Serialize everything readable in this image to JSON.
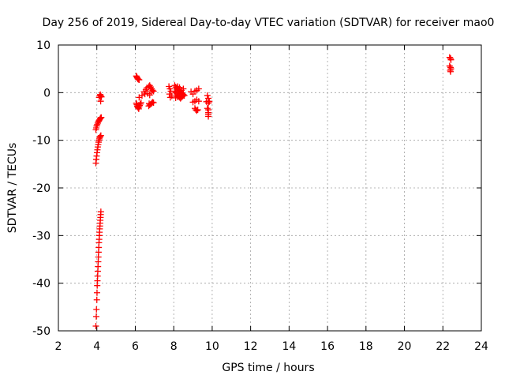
{
  "chart_data": {
    "type": "scatter",
    "title": "Day 256 of 2019, Sidereal Day-to-day VTEC variation (SDTVAR) for receiver mao0",
    "xlabel": "GPS time / hours",
    "ylabel": "SDTVAR / TECUs",
    "xlim": [
      2,
      24
    ],
    "ylim": [
      -50,
      10
    ],
    "xticks": [
      "2",
      "4",
      "6",
      "8",
      "10",
      "12",
      "14",
      "16",
      "18",
      "20",
      "22",
      "24"
    ],
    "yticks": [
      "10",
      "0",
      "-10",
      "-20",
      "-30",
      "-40",
      "-50"
    ],
    "grid": true,
    "marker": "+",
    "color": "#ff0000",
    "series": [
      {
        "name": "SDTVAR",
        "points": [
          [
            3.95,
            -49.0
          ],
          [
            3.97,
            -47.0
          ],
          [
            3.98,
            -45.5
          ],
          [
            4.0,
            -43.5
          ],
          [
            4.01,
            -42.0
          ],
          [
            4.02,
            -40.5
          ],
          [
            4.03,
            -39.5
          ],
          [
            4.04,
            -38.5
          ],
          [
            4.05,
            -37.5
          ],
          [
            4.06,
            -36.5
          ],
          [
            4.07,
            -35.5
          ],
          [
            4.08,
            -34.5
          ],
          [
            4.09,
            -33.5
          ],
          [
            4.1,
            -32.5
          ],
          [
            4.11,
            -31.5
          ],
          [
            4.12,
            -30.8
          ],
          [
            4.13,
            -30.0
          ],
          [
            4.14,
            -29.3
          ],
          [
            4.15,
            -28.6
          ],
          [
            4.16,
            -28.0
          ],
          [
            4.17,
            -27.4
          ],
          [
            4.18,
            -26.8
          ],
          [
            4.19,
            -26.2
          ],
          [
            4.2,
            -25.6
          ],
          [
            4.21,
            -25.0
          ],
          [
            3.95,
            -14.8
          ],
          [
            3.97,
            -14.0
          ],
          [
            3.99,
            -13.3
          ],
          [
            4.01,
            -12.6
          ],
          [
            4.03,
            -12.0
          ],
          [
            4.05,
            -11.4
          ],
          [
            4.07,
            -10.9
          ],
          [
            4.09,
            -10.4
          ],
          [
            4.11,
            -10.0
          ],
          [
            4.13,
            -9.7
          ],
          [
            4.15,
            -9.4
          ],
          [
            4.18,
            -9.2
          ],
          [
            4.21,
            -9.0
          ],
          [
            3.95,
            -7.8
          ],
          [
            3.97,
            -7.4
          ],
          [
            3.99,
            -7.0
          ],
          [
            4.02,
            -6.7
          ],
          [
            4.05,
            -6.4
          ],
          [
            4.08,
            -6.1
          ],
          [
            4.11,
            -5.9
          ],
          [
            4.14,
            -5.7
          ],
          [
            4.17,
            -5.5
          ],
          [
            4.2,
            -5.3
          ],
          [
            4.23,
            -5.2
          ],
          [
            4.12,
            -1.0
          ],
          [
            4.15,
            -0.6
          ],
          [
            4.18,
            -0.4
          ],
          [
            4.21,
            -0.7
          ],
          [
            4.24,
            -0.9
          ],
          [
            4.2,
            -1.8
          ],
          [
            6.05,
            3.5
          ],
          [
            6.08,
            3.3
          ],
          [
            6.1,
            3.1
          ],
          [
            6.13,
            2.9
          ],
          [
            6.16,
            2.8
          ],
          [
            6.2,
            2.7
          ],
          [
            6.05,
            -2.2
          ],
          [
            6.08,
            -2.5
          ],
          [
            6.1,
            -2.8
          ],
          [
            6.12,
            -3.0
          ],
          [
            6.15,
            -3.2
          ],
          [
            6.18,
            -3.4
          ],
          [
            6.2,
            -3.0
          ],
          [
            6.23,
            -2.7
          ],
          [
            6.26,
            -2.4
          ],
          [
            6.3,
            -2.1
          ],
          [
            6.2,
            -1.0
          ],
          [
            6.35,
            -0.6
          ],
          [
            6.45,
            0.2
          ],
          [
            6.55,
            0.6
          ],
          [
            6.6,
            1.0
          ],
          [
            6.7,
            1.3
          ],
          [
            6.75,
            1.5
          ],
          [
            6.8,
            1.2
          ],
          [
            6.85,
            0.8
          ],
          [
            6.9,
            0.5
          ],
          [
            6.95,
            0.3
          ],
          [
            6.65,
            -0.2
          ],
          [
            6.75,
            -0.5
          ],
          [
            6.85,
            0.2
          ],
          [
            6.5,
            -0.3
          ],
          [
            6.7,
            -2.8
          ],
          [
            6.75,
            -2.6
          ],
          [
            6.8,
            -2.4
          ],
          [
            6.85,
            -2.2
          ],
          [
            6.9,
            -2.0
          ],
          [
            6.95,
            -2.1
          ],
          [
            6.72,
            -2.3
          ],
          [
            7.75,
            1.3
          ],
          [
            7.8,
            0.8
          ],
          [
            7.85,
            0.3
          ],
          [
            7.78,
            -0.3
          ],
          [
            7.82,
            -1.0
          ],
          [
            7.9,
            -0.7
          ],
          [
            8.05,
            1.5
          ],
          [
            8.1,
            1.2
          ],
          [
            8.15,
            1.0
          ],
          [
            8.2,
            0.8
          ],
          [
            8.25,
            0.6
          ],
          [
            8.3,
            0.4
          ],
          [
            8.35,
            0.2
          ],
          [
            8.4,
            0.0
          ],
          [
            8.45,
            -0.2
          ],
          [
            8.5,
            -0.4
          ],
          [
            8.55,
            -0.6
          ],
          [
            8.05,
            0.3
          ],
          [
            8.1,
            0.0
          ],
          [
            8.15,
            -0.3
          ],
          [
            8.2,
            -0.6
          ],
          [
            8.25,
            -0.8
          ],
          [
            8.3,
            -1.0
          ],
          [
            8.35,
            -1.2
          ],
          [
            8.4,
            -1.0
          ],
          [
            8.45,
            -0.8
          ],
          [
            8.5,
            -0.5
          ],
          [
            8.1,
            -1.1
          ],
          [
            8.2,
            -0.9
          ],
          [
            8.3,
            -0.2
          ],
          [
            8.4,
            0.5
          ],
          [
            8.5,
            0.8
          ],
          [
            8.2,
            1.3
          ],
          [
            8.3,
            1.1
          ],
          [
            8.9,
            0.2
          ],
          [
            9.0,
            -0.3
          ],
          [
            9.1,
            0.3
          ],
          [
            9.2,
            0.5
          ],
          [
            9.3,
            0.8
          ],
          [
            9.0,
            -2.0
          ],
          [
            9.1,
            -1.8
          ],
          [
            9.2,
            -1.5
          ],
          [
            9.3,
            -1.8
          ],
          [
            9.1,
            -3.3
          ],
          [
            9.15,
            -3.6
          ],
          [
            9.2,
            -3.8
          ],
          [
            9.25,
            -3.6
          ],
          [
            9.75,
            -0.6
          ],
          [
            9.8,
            -1.2
          ],
          [
            9.8,
            -1.8
          ],
          [
            9.8,
            -2.2
          ],
          [
            9.75,
            -3.3
          ],
          [
            9.8,
            -3.6
          ],
          [
            9.8,
            -4.2
          ],
          [
            9.8,
            -4.6
          ],
          [
            9.8,
            -5.0
          ],
          [
            9.7,
            -1.9
          ],
          [
            9.85,
            -1.9
          ],
          [
            22.35,
            7.4
          ],
          [
            22.4,
            7.2
          ],
          [
            22.42,
            6.9
          ],
          [
            22.35,
            5.6
          ],
          [
            22.4,
            5.3
          ],
          [
            22.42,
            5.0
          ],
          [
            22.38,
            4.7
          ],
          [
            22.4,
            4.4
          ]
        ]
      }
    ]
  }
}
